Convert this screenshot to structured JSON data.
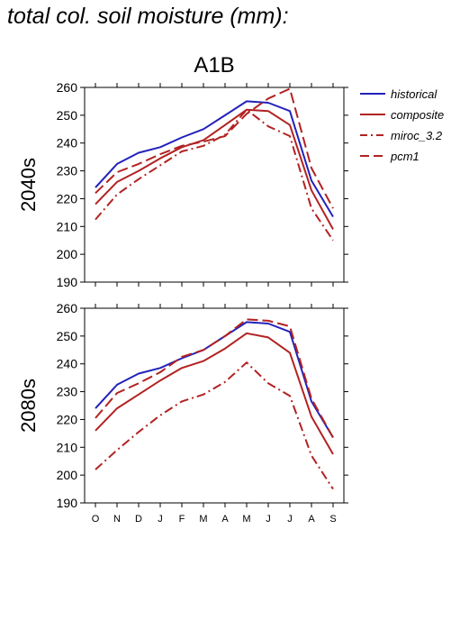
{
  "figure": {
    "title": "total col. soil moisture (mm):"
  },
  "chart_data": {
    "type": "line",
    "title": "A1B",
    "categories": [
      "O",
      "N",
      "D",
      "J",
      "F",
      "M",
      "A",
      "M",
      "J",
      "J",
      "A",
      "S"
    ],
    "ylim": [
      190,
      260
    ],
    "yticks": [
      190,
      200,
      210,
      220,
      230,
      240,
      250,
      260
    ],
    "legend": [
      {
        "name": "historical",
        "color": "#2222bb",
        "dash": "solid"
      },
      {
        "name": "composite",
        "color": "#b22222",
        "dash": "solid"
      },
      {
        "name": "miroc_3.2",
        "color": "#b22222",
        "dash": "dashdot"
      },
      {
        "name": "pcm1",
        "color": "#b22222",
        "dash": "dashed"
      }
    ],
    "panels": [
      {
        "label": "2040s",
        "series": [
          {
            "name": "historical",
            "values": [
              224,
              232.5,
              236.5,
              238.5,
              242,
              245,
              250,
              255,
              254.5,
              251.5,
              226.5,
              213.5
            ]
          },
          {
            "name": "composite",
            "values": [
              218,
              226,
              230,
              234.5,
              238.5,
              241,
              246.5,
              252,
              251.5,
              246.5,
              223,
              209
            ]
          },
          {
            "name": "miroc_3.2",
            "values": [
              212.5,
              221.5,
              227,
              232,
              237,
              239,
              243,
              252,
              246,
              242.5,
              216.5,
              205
            ]
          },
          {
            "name": "pcm1",
            "values": [
              222,
              229.5,
              232.5,
              236,
              239,
              240.5,
              242.5,
              250.5,
              256,
              259.5,
              231,
              216.5
            ]
          }
        ]
      },
      {
        "label": "2080s",
        "series": [
          {
            "name": "historical",
            "values": [
              224,
              232.5,
              236.5,
              238.5,
              242,
              245,
              250,
              255,
              254.5,
              251.5,
              226.5,
              213.5
            ]
          },
          {
            "name": "composite",
            "values": [
              216,
              224,
              229,
              234,
              238.5,
              241,
              245.5,
              251,
              249.5,
              244,
              221,
              207.5
            ]
          },
          {
            "name": "miroc_3.2",
            "values": [
              202,
              209,
              215.5,
              221.5,
              226.5,
              229,
              233.5,
              240.5,
              233,
              228.5,
              207,
              195
            ]
          },
          {
            "name": "pcm1",
            "values": [
              220.5,
              229.5,
              233,
              237,
              242.5,
              245,
              250,
              256,
              255.5,
              253.5,
              227.5,
              213.5
            ]
          }
        ]
      }
    ]
  }
}
